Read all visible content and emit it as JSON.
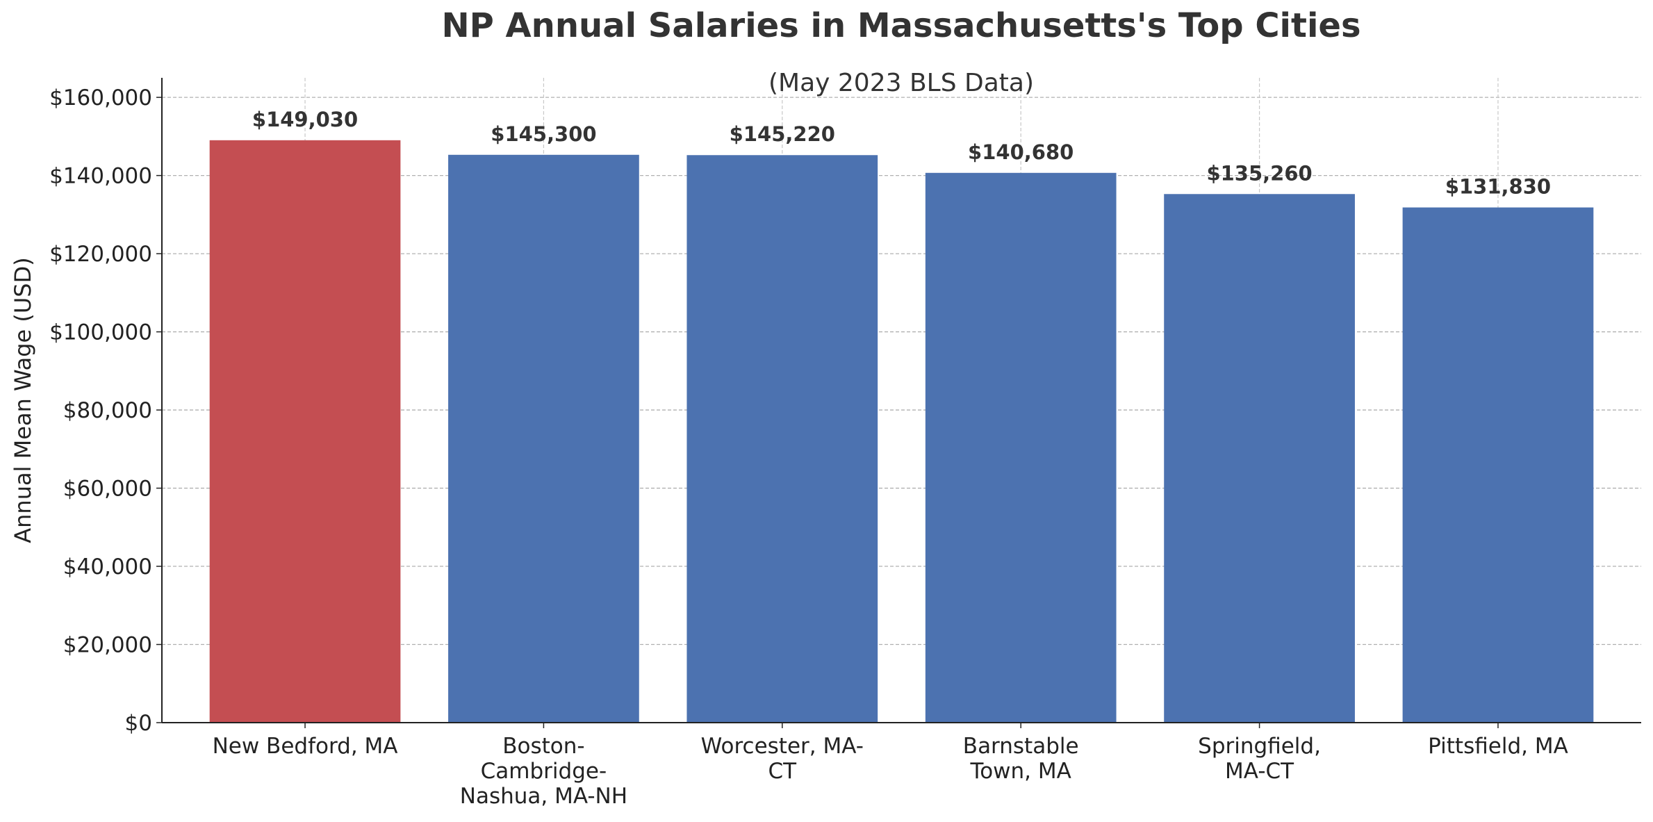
{
  "chart_data": {
    "type": "bar",
    "title": "NP Annual Salaries in Massachusetts's Top Cities",
    "subtitle": "(May 2023 BLS Data)",
    "xlabel": "",
    "ylabel": "Annual Mean Wage (USD)",
    "ylim": [
      0,
      165000
    ],
    "yticks": [
      0,
      20000,
      40000,
      60000,
      80000,
      100000,
      120000,
      140000,
      160000
    ],
    "ytick_labels": [
      "$0",
      "$20,000",
      "$40,000",
      "$60,000",
      "$80,000",
      "$100,000",
      "$120,000",
      "$140,000",
      "$160,000"
    ],
    "grid": true,
    "categories": [
      [
        "New Bedford, MA"
      ],
      [
        "Boston-",
        "Cambridge-",
        "Nashua, MA-NH"
      ],
      [
        "Worcester, MA-",
        "CT"
      ],
      [
        "Barnstable",
        "Town, MA"
      ],
      [
        "Springfield,",
        "MA-CT"
      ],
      [
        "Pittsfield, MA"
      ]
    ],
    "values": [
      149030,
      145300,
      145220,
      140680,
      135260,
      131830
    ],
    "value_labels": [
      "$149,030",
      "$145,300",
      "$145,220",
      "$140,680",
      "$135,260",
      "$131,830"
    ],
    "bar_colors": [
      "#c44e52",
      "#4c72b0",
      "#4c72b0",
      "#4c72b0",
      "#4c72b0",
      "#4c72b0"
    ]
  }
}
